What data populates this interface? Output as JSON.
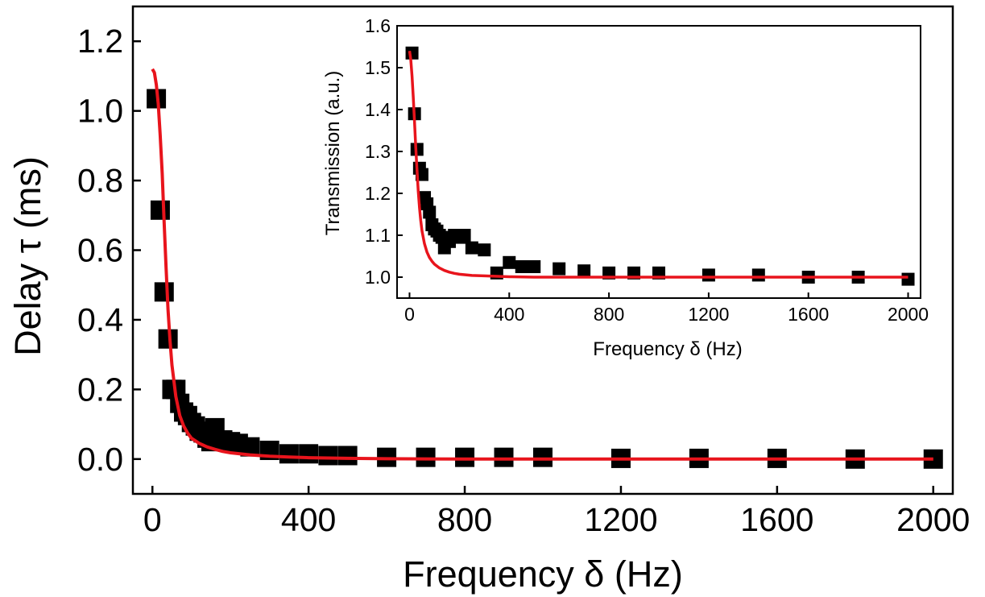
{
  "chart_data": [
    {
      "type": "scatter",
      "panel": "main",
      "title": "",
      "xlabel": "Frequency δ (Hz)",
      "ylabel": "Delay τ (ms)",
      "xlim": [
        -50,
        2050
      ],
      "ylim": [
        -0.1,
        1.3
      ],
      "xticks": [
        0,
        400,
        800,
        1200,
        1600,
        2000
      ],
      "yticks": [
        0.0,
        0.2,
        0.4,
        0.6,
        0.8,
        1.0,
        1.2
      ],
      "xtick_labels": [
        "0",
        "400",
        "800",
        "1200",
        "1600",
        "2000"
      ],
      "ytick_labels": [
        "0.0",
        "0.2",
        "0.4",
        "0.6",
        "0.8",
        "1.0",
        "1.2"
      ],
      "grid": false,
      "series": [
        {
          "kind": "markers",
          "marker": "square",
          "color": "#000000",
          "x": [
            10,
            20,
            30,
            40,
            50,
            60,
            70,
            80,
            90,
            100,
            110,
            120,
            130,
            140,
            150,
            160,
            180,
            200,
            220,
            250,
            300,
            350,
            400,
            450,
            500,
            600,
            700,
            800,
            900,
            1000,
            1200,
            1400,
            1600,
            1800,
            2000
          ],
          "y": [
            1.035,
            0.715,
            0.48,
            0.345,
            0.2,
            0.2,
            0.16,
            0.135,
            0.125,
            0.105,
            0.095,
            0.08,
            0.075,
            0.06,
            0.05,
            0.09,
            0.055,
            0.05,
            0.045,
            0.035,
            0.025,
            0.015,
            0.015,
            0.01,
            0.01,
            0.005,
            0.005,
            0.005,
            0.005,
            0.005,
            0.002,
            0.002,
            0.002,
            0.0,
            0.0
          ]
        },
        {
          "kind": "line",
          "color": "#e8141c",
          "x": [
            0,
            5,
            10,
            15,
            20,
            25,
            30,
            35,
            40,
            45,
            50,
            60,
            70,
            80,
            90,
            100,
            120,
            140,
            160,
            180,
            200,
            250,
            300,
            350,
            400,
            450,
            500,
            600,
            700,
            800,
            900,
            1000,
            1200,
            1400,
            1600,
            1800,
            2000
          ],
          "y": [
            1.12,
            1.11,
            1.075,
            1.02,
            0.93,
            0.82,
            0.68,
            0.55,
            0.43,
            0.34,
            0.27,
            0.18,
            0.125,
            0.095,
            0.075,
            0.06,
            0.045,
            0.035,
            0.028,
            0.022,
            0.018,
            0.012,
            0.008,
            0.006,
            0.004,
            0.003,
            0.002,
            0.001,
            0.0005,
            0.0003,
            0.0002,
            0.0001,
            0.0,
            0.0,
            0.0,
            0.0,
            0.0
          ]
        }
      ]
    },
    {
      "type": "scatter",
      "panel": "inset",
      "title": "",
      "xlabel": "Frequency δ (Hz)",
      "ylabel": "Transmission (a.u.)",
      "xlim": [
        -50,
        2050
      ],
      "ylim": [
        0.95,
        1.6
      ],
      "xticks": [
        0,
        400,
        800,
        1200,
        1600,
        2000
      ],
      "yticks": [
        1.0,
        1.1,
        1.2,
        1.3,
        1.4,
        1.5,
        1.6
      ],
      "xtick_labels": [
        "0",
        "400",
        "800",
        "1200",
        "1600",
        "2000"
      ],
      "ytick_labels": [
        "1.0",
        "1.1",
        "1.2",
        "1.3",
        "1.4",
        "1.5",
        "1.6"
      ],
      "grid": false,
      "series": [
        {
          "kind": "markers",
          "marker": "square",
          "color": "#000000",
          "x": [
            10,
            20,
            30,
            40,
            50,
            60,
            70,
            80,
            90,
            100,
            110,
            120,
            130,
            140,
            150,
            160,
            180,
            200,
            220,
            250,
            300,
            350,
            400,
            450,
            500,
            600,
            700,
            800,
            900,
            1000,
            1200,
            1400,
            1600,
            1800,
            2000
          ],
          "y": [
            1.535,
            1.39,
            1.305,
            1.26,
            1.245,
            1.19,
            1.175,
            1.155,
            1.125,
            1.115,
            1.11,
            1.1,
            1.095,
            1.07,
            1.09,
            1.085,
            1.1,
            1.095,
            1.1,
            1.07,
            1.065,
            1.01,
            1.035,
            1.025,
            1.025,
            1.02,
            1.015,
            1.01,
            1.01,
            1.01,
            1.005,
            1.005,
            1.0,
            1.0,
            0.995
          ]
        },
        {
          "kind": "line",
          "color": "#e8141c",
          "x": [
            0,
            5,
            10,
            15,
            20,
            25,
            30,
            35,
            40,
            45,
            50,
            60,
            70,
            80,
            90,
            100,
            120,
            140,
            160,
            180,
            200,
            250,
            300,
            400,
            500,
            600,
            800,
            1000,
            1200,
            1400,
            1600,
            1800,
            2000
          ],
          "y": [
            1.54,
            1.52,
            1.48,
            1.43,
            1.37,
            1.31,
            1.255,
            1.205,
            1.165,
            1.135,
            1.11,
            1.08,
            1.06,
            1.047,
            1.038,
            1.031,
            1.022,
            1.016,
            1.012,
            1.009,
            1.007,
            1.004,
            1.003,
            1.001,
            1.0,
            1.0,
            1.0,
            1.0,
            1.0,
            1.0,
            1.0,
            1.0,
            1.0
          ]
        }
      ]
    }
  ]
}
